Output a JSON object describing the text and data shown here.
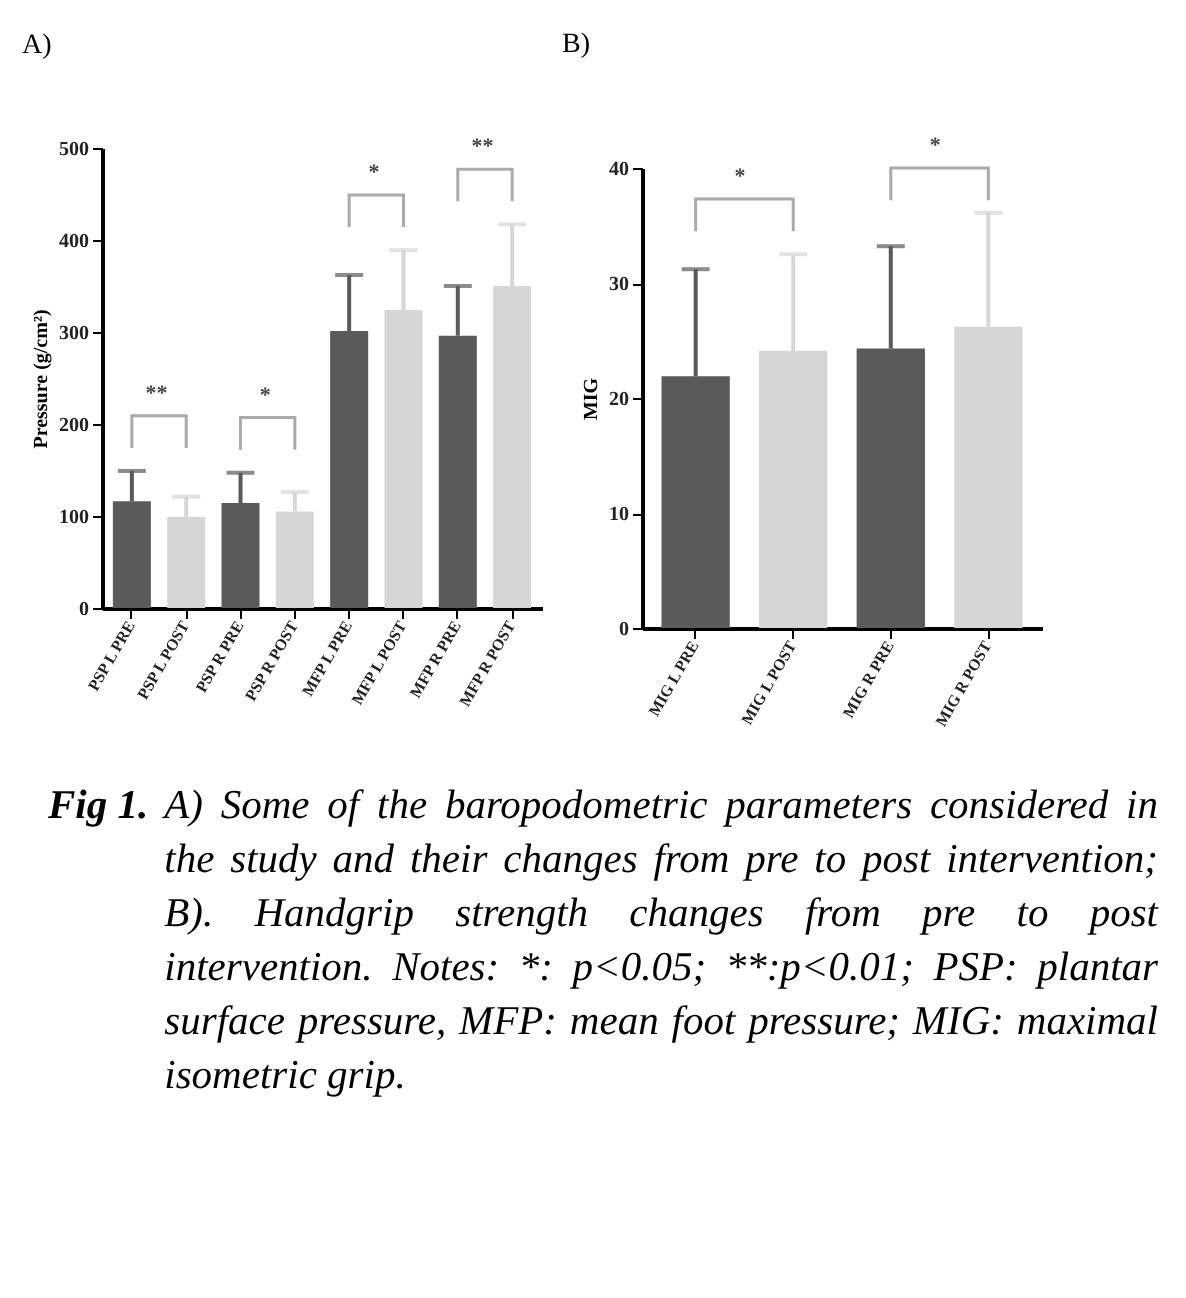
{
  "chart_data": [
    {
      "type": "bar",
      "title": "A)",
      "ylabel": "Pressure (g/cm²)",
      "categories": [
        "PSP L PRE",
        "PSP L POST",
        "PSP R PRE",
        "PSP R POST",
        "MFP L PRE",
        "MFP L POST",
        "MFP R PRE",
        "MFP R POST"
      ],
      "values": [
        116,
        99,
        114,
        105,
        301,
        324,
        296,
        350
      ],
      "errors": [
        [
          116,
          149
        ],
        [
          99,
          121
        ],
        [
          114,
          147
        ],
        [
          105,
          126
        ],
        [
          301,
          362
        ],
        [
          324,
          389
        ],
        [
          296,
          350
        ],
        [
          350,
          417
        ]
      ],
      "colors": [
        "#5a5a5a",
        "#d6d6d6",
        "#5a5a5a",
        "#d6d6d6",
        "#5a5a5a",
        "#d6d6d6",
        "#5a5a5a",
        "#d6d6d6"
      ],
      "ylim": [
        0,
        500
      ],
      "yticks": [
        0,
        100,
        200,
        300,
        400,
        500
      ],
      "annotations": [
        "**",
        "*",
        "*",
        "**"
      ]
    },
    {
      "type": "bar",
      "title": "B)",
      "ylabel": "MIG",
      "categories": [
        "MIG L PRE",
        "MIG L POST",
        "MIG R PRE",
        "MIG R POST"
      ],
      "values": [
        21.9,
        24.1,
        24.3,
        26.2
      ],
      "errors": [
        [
          21.9,
          31.2
        ],
        [
          24.1,
          32.5
        ],
        [
          24.3,
          33.2
        ],
        [
          26.2,
          36.1
        ]
      ],
      "colors": [
        "#5a5a5a",
        "#d6d6d6",
        "#5a5a5a",
        "#d6d6d6"
      ],
      "ylim": [
        0,
        40
      ],
      "yticks": [
        0,
        10,
        20,
        30,
        40
      ],
      "annotations": [
        "*",
        "*"
      ]
    },
    {
      "type": "other",
      "title": "Fig 1.",
      "subtitle": "A) Some of the baropodometric parameters considered in the study and their changes from pre to post intervention; B). Handgrip strength changes from pre to post intervention. Notes: *: p<0.05; **:p<0.01; PSP: plantar surface pressure, MFP: mean foot pressure; MIG: maximal isometric grip."
    }
  ]
}
